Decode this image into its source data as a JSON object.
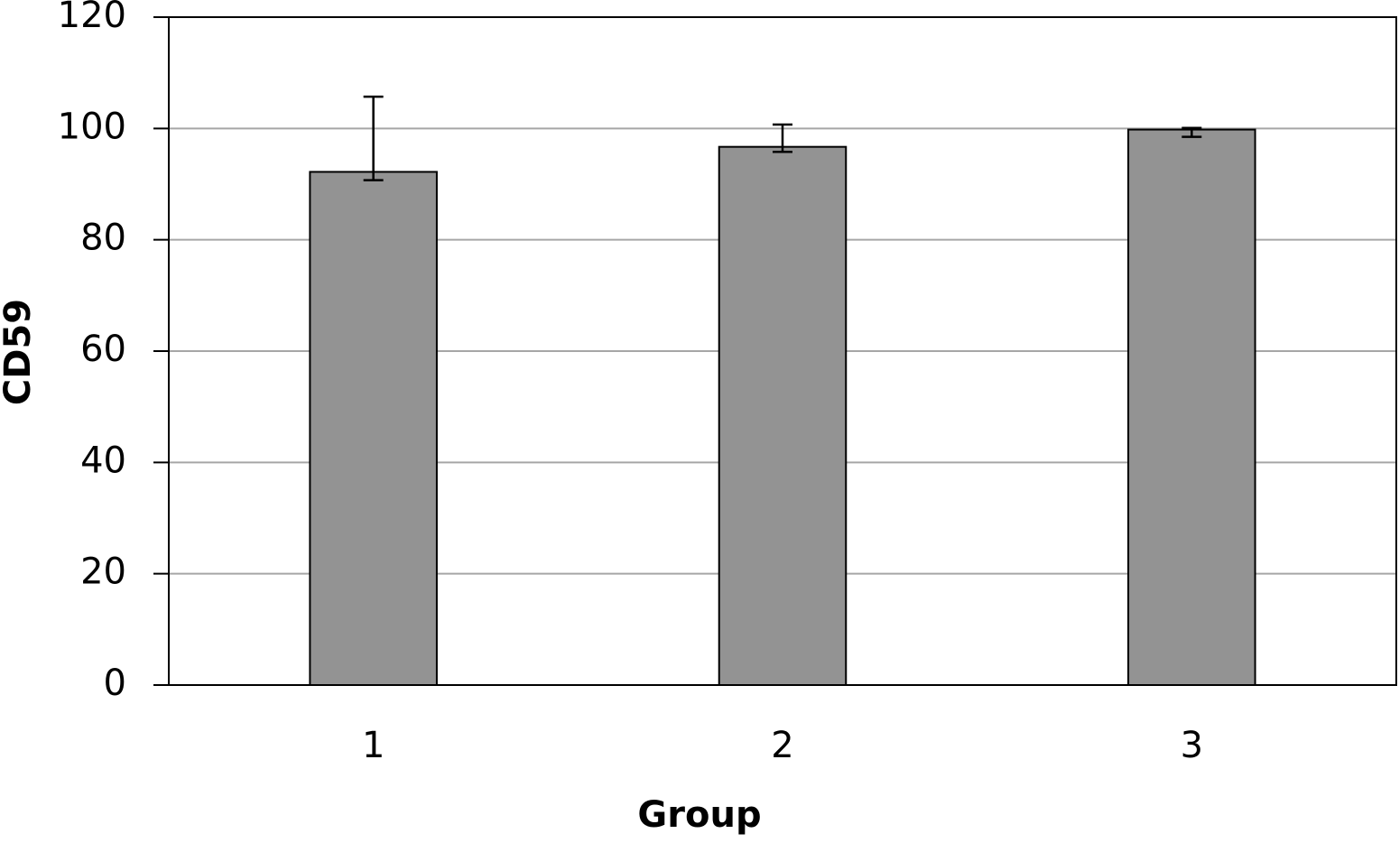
{
  "chart_data": {
    "type": "bar",
    "x_label": "Group",
    "y_label": "CD59",
    "categories": [
      "1",
      "2",
      "3"
    ],
    "values": [
      92.2,
      96.7,
      99.8
    ],
    "errors_upper": [
      13.5,
      4,
      0.3
    ],
    "errors_lower": [
      1.5,
      0.9,
      1.3
    ],
    "color": "#939393",
    "ylim": [
      0,
      120
    ],
    "yticks": [
      0,
      20,
      40,
      60,
      80,
      100,
      120
    ],
    "grid": true
  }
}
